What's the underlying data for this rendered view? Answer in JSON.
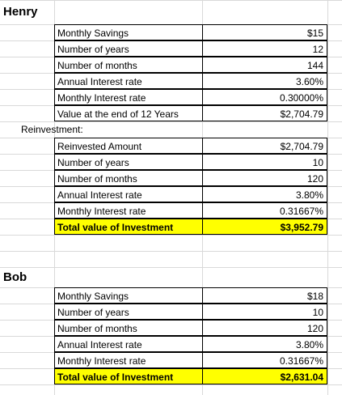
{
  "henry": {
    "title": "Henry",
    "rows": [
      [
        "Monthly Savings",
        "$15"
      ],
      [
        "Number of years",
        "12"
      ],
      [
        "Number of months",
        "144"
      ],
      [
        "Annual Interest rate",
        "3.60%"
      ],
      [
        "Monthly Interest rate",
        "0.30000%"
      ],
      [
        "Value at the end of 12 Years",
        "$2,704.79"
      ]
    ],
    "reinvestment_label": "Reinvestment:",
    "reinvestment_rows": [
      [
        "Reinvested Amount",
        "$2,704.79"
      ],
      [
        "Number of years",
        "10"
      ],
      [
        "Number of months",
        "120"
      ],
      [
        "Annual Interest rate",
        "3.80%"
      ],
      [
        "Monthly Interest rate",
        "0.31667%"
      ],
      [
        "Total value of Investment",
        "$3,952.79"
      ]
    ]
  },
  "bob": {
    "title": "Bob",
    "rows": [
      [
        "Monthly Savings",
        "$18"
      ],
      [
        "Number of years",
        "10"
      ],
      [
        "Number of months",
        "120"
      ],
      [
        "Annual Interest rate",
        "3.80%"
      ],
      [
        "Monthly Interest rate",
        "0.31667%"
      ],
      [
        "Total value of Investment",
        "$2,631.04"
      ]
    ]
  }
}
